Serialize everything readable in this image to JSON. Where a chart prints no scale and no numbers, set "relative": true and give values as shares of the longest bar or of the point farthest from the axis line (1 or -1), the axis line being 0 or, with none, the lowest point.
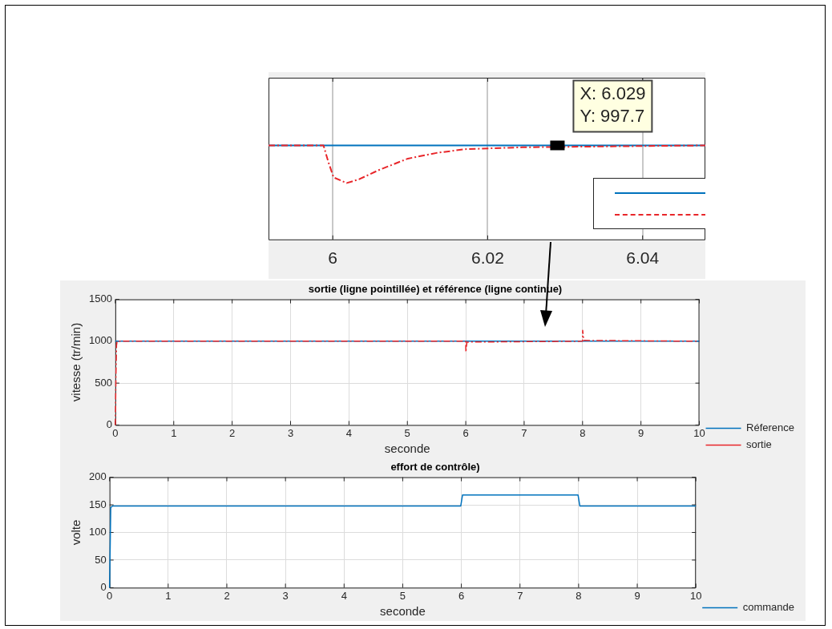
{
  "chart_data": [
    {
      "type": "line",
      "relative": true,
      "xlim": [
        5.9917,
        6.0481
      ],
      "xticks": [
        6,
        6.02,
        6.04
      ],
      "tick_labels": "x",
      "grid": "x",
      "marker": "none",
      "annotations": [
        {
          "text": "X: 6.029\nY: 997.7",
          "x": 6.029,
          "y": 1
        }
      ],
      "series": [
        {
          "color": "#0072bd",
          "line_style": "solid",
          "x": [
            5.9917,
            6.0481
          ],
          "values": [
            1,
            1
          ]
        },
        {
          "color": "#e8262a",
          "line_style": "dashed",
          "x": [
            5.9917,
            5.9988,
            5.9994,
            6.0001,
            6.0018,
            6.0034,
            6.006,
            6.0097,
            6.0134,
            6.0171,
            6.0208,
            6.0245,
            6.0481
          ],
          "values": [
            1,
            1,
            0.83,
            0.66,
            0.6,
            0.64,
            0.74,
            0.86,
            0.92,
            0.96,
            0.97,
            0.98,
            1
          ]
        }
      ]
    },
    {
      "type": "line",
      "title": "sortie (ligne pointillée) et référence (ligne continue)",
      "xlabel": "seconde",
      "ylabel": "vitesse (tr/min)",
      "xlim": [
        0,
        10
      ],
      "xticks": [
        0,
        1,
        2,
        3,
        4,
        5,
        6,
        7,
        8,
        9,
        10
      ],
      "ylim": [
        0,
        1500
      ],
      "yticks": [
        0,
        500,
        1000,
        1500
      ],
      "grid": true,
      "legend": "bottom right",
      "marker": "none",
      "series": [
        {
          "name": "Réference",
          "color": "#0072bd",
          "line_style": "solid",
          "x": [
            0,
            10
          ],
          "values": [
            1000,
            1000
          ]
        },
        {
          "name": "sortie",
          "color": "#e8262a",
          "line_style": "dashed",
          "x": [
            0,
            0.01,
            0.02,
            0.03,
            5.999,
            6.002,
            6.02,
            7.999,
            8.002,
            8.02,
            10
          ],
          "values": [
            0,
            600,
            950,
            1000,
            1000,
            870,
            990,
            1000,
            1130,
            1010,
            1000
          ]
        }
      ]
    },
    {
      "type": "line",
      "title": "effort de contrôle)",
      "xlabel": "seconde",
      "ylabel": "volte",
      "xlim": [
        0,
        10
      ],
      "xticks": [
        0,
        1,
        2,
        3,
        4,
        5,
        6,
        7,
        8,
        9,
        10
      ],
      "ylim": [
        0,
        200
      ],
      "yticks": [
        0,
        50,
        100,
        150,
        200
      ],
      "grid": true,
      "legend": "bottom right",
      "marker": "none",
      "series": [
        {
          "name": "commande",
          "color": "#0072bd",
          "line_style": "solid",
          "x": [
            0,
            0.02,
            0.05,
            5.99,
            6.02,
            7.99,
            8.02,
            10
          ],
          "values": [
            0,
            145,
            148,
            148,
            168,
            168,
            148,
            148
          ]
        }
      ]
    }
  ]
}
